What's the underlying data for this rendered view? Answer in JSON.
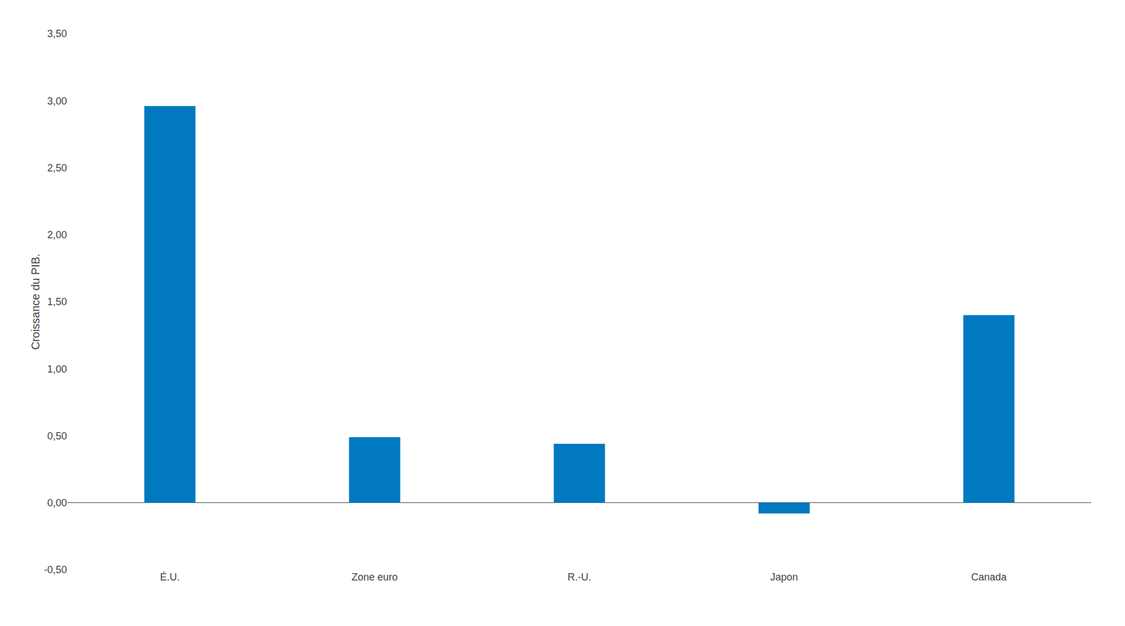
{
  "chart_data": {
    "type": "bar",
    "categories": [
      "É.U.",
      "Zone euro",
      "R.-U.",
      "Japon",
      "Canada"
    ],
    "values": [
      2.96,
      0.49,
      0.44,
      -0.08,
      1.4
    ],
    "color": "#0079C1",
    "ylabel": "Croissance du PIB.",
    "ylim": [
      -0.5,
      3.5
    ],
    "yticks": [
      {
        "value": -0.5,
        "label": "-0,50"
      },
      {
        "value": 0.0,
        "label": "0,00"
      },
      {
        "value": 0.5,
        "label": "0,50"
      },
      {
        "value": 1.0,
        "label": "1,00"
      },
      {
        "value": 1.5,
        "label": "1,50"
      },
      {
        "value": 2.0,
        "label": "2,00"
      },
      {
        "value": 2.5,
        "label": "2,50"
      },
      {
        "value": 3.0,
        "label": "3,00"
      },
      {
        "value": 3.5,
        "label": "3,50"
      }
    ],
    "grid": false
  }
}
